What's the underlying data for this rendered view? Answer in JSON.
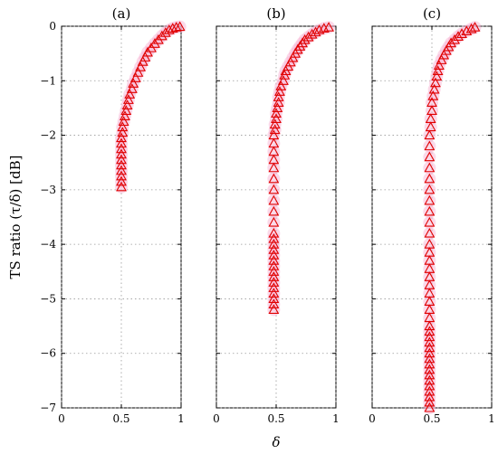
{
  "figure": {
    "ylabel": "TS ratio (τ/δ) [dB]",
    "xlabel": "δ"
  },
  "chart_data": [
    {
      "type": "scatter",
      "title": "(a)",
      "xlim": [
        0,
        1
      ],
      "ylim": [
        -7,
        0
      ],
      "xticks": [
        "0",
        "0.5",
        "1"
      ],
      "yticks": [
        "0",
        "−1",
        "−2",
        "−3",
        "−4",
        "−5",
        "−6",
        "−7"
      ],
      "grid": true,
      "marker": "triangle",
      "series": [
        {
          "x": [
            0.5,
            0.5,
            0.5,
            0.5,
            0.5,
            0.5,
            0.5,
            0.5,
            0.5,
            0.5,
            0.51,
            0.51,
            0.52,
            0.53,
            0.54,
            0.55,
            0.56,
            0.57,
            0.59,
            0.6,
            0.62,
            0.64,
            0.66,
            0.68,
            0.7,
            0.72,
            0.75,
            0.78,
            0.81,
            0.84,
            0.87,
            0.9,
            0.93,
            0.96,
            0.99
          ],
          "y": [
            -2.95,
            -2.85,
            -2.75,
            -2.65,
            -2.55,
            -2.45,
            -2.35,
            -2.25,
            -2.15,
            -2.05,
            -1.95,
            -1.85,
            -1.75,
            -1.65,
            -1.55,
            -1.45,
            -1.35,
            -1.25,
            -1.15,
            -1.05,
            -0.95,
            -0.85,
            -0.75,
            -0.65,
            -0.57,
            -0.48,
            -0.4,
            -0.32,
            -0.25,
            -0.18,
            -0.12,
            -0.07,
            -0.04,
            -0.02,
            -0.01
          ]
        }
      ]
    },
    {
      "type": "scatter",
      "title": "(b)",
      "xlim": [
        0,
        1
      ],
      "ylim": [
        -7,
        0
      ],
      "xticks": [
        "0",
        "0.5",
        "1"
      ],
      "yticks": [],
      "grid": true,
      "marker": "triangle",
      "series": [
        {
          "x": [
            0.48,
            0.48,
            0.48,
            0.48,
            0.48,
            0.48,
            0.48,
            0.48,
            0.48,
            0.48,
            0.48,
            0.48,
            0.48,
            0.48,
            0.48,
            0.48,
            0.48,
            0.48,
            0.48,
            0.48,
            0.48,
            0.48,
            0.48,
            0.48,
            0.48,
            0.49,
            0.49,
            0.5,
            0.5,
            0.51,
            0.52,
            0.52,
            0.53,
            0.54,
            0.56,
            0.57,
            0.58,
            0.6,
            0.62,
            0.64,
            0.66,
            0.68,
            0.7,
            0.72,
            0.74,
            0.77,
            0.8,
            0.83,
            0.86,
            0.9,
            0.94
          ],
          "y": [
            -5.2,
            -5.1,
            -5.0,
            -4.9,
            -4.8,
            -4.7,
            -4.6,
            -4.5,
            -4.4,
            -4.3,
            -4.2,
            -4.1,
            -4.0,
            -3.9,
            -3.8,
            -3.6,
            -3.4,
            -3.2,
            -3.0,
            -2.8,
            -2.6,
            -2.45,
            -2.3,
            -2.15,
            -2.0,
            -1.9,
            -1.8,
            -1.7,
            -1.6,
            -1.5,
            -1.4,
            -1.3,
            -1.2,
            -1.1,
            -1.0,
            -0.9,
            -0.82,
            -0.74,
            -0.66,
            -0.58,
            -0.5,
            -0.43,
            -0.37,
            -0.31,
            -0.25,
            -0.2,
            -0.15,
            -0.11,
            -0.07,
            -0.04,
            -0.02
          ]
        }
      ]
    },
    {
      "type": "scatter",
      "title": "(c)",
      "xlim": [
        0,
        1
      ],
      "ylim": [
        -7,
        0
      ],
      "xticks": [
        "0",
        "0.5",
        "1"
      ],
      "yticks": [],
      "grid": true,
      "marker": "triangle",
      "series": [
        {
          "x": [
            0.48,
            0.48,
            0.48,
            0.48,
            0.48,
            0.48,
            0.48,
            0.48,
            0.48,
            0.48,
            0.48,
            0.48,
            0.48,
            0.48,
            0.48,
            0.48,
            0.48,
            0.48,
            0.48,
            0.48,
            0.48,
            0.48,
            0.48,
            0.48,
            0.48,
            0.48,
            0.48,
            0.48,
            0.48,
            0.48,
            0.48,
            0.48,
            0.48,
            0.48,
            0.48,
            0.48,
            0.49,
            0.49,
            0.5,
            0.5,
            0.51,
            0.52,
            0.53,
            0.54,
            0.55,
            0.56,
            0.58,
            0.6,
            0.62,
            0.64,
            0.66,
            0.69,
            0.72,
            0.75,
            0.79,
            0.83,
            0.86
          ],
          "y": [
            -7.0,
            -6.9,
            -6.8,
            -6.7,
            -6.6,
            -6.5,
            -6.4,
            -6.3,
            -6.2,
            -6.1,
            -6.0,
            -5.9,
            -5.8,
            -5.7,
            -5.6,
            -5.5,
            -5.35,
            -5.2,
            -5.05,
            -4.9,
            -4.75,
            -4.6,
            -4.45,
            -4.3,
            -4.15,
            -4.0,
            -3.8,
            -3.6,
            -3.4,
            -3.2,
            -3.0,
            -2.8,
            -2.6,
            -2.4,
            -2.2,
            -2.0,
            -1.85,
            -1.7,
            -1.55,
            -1.4,
            -1.28,
            -1.16,
            -1.04,
            -0.92,
            -0.82,
            -0.72,
            -0.62,
            -0.53,
            -0.45,
            -0.38,
            -0.31,
            -0.25,
            -0.19,
            -0.14,
            -0.09,
            -0.05,
            -0.02
          ]
        }
      ]
    }
  ]
}
